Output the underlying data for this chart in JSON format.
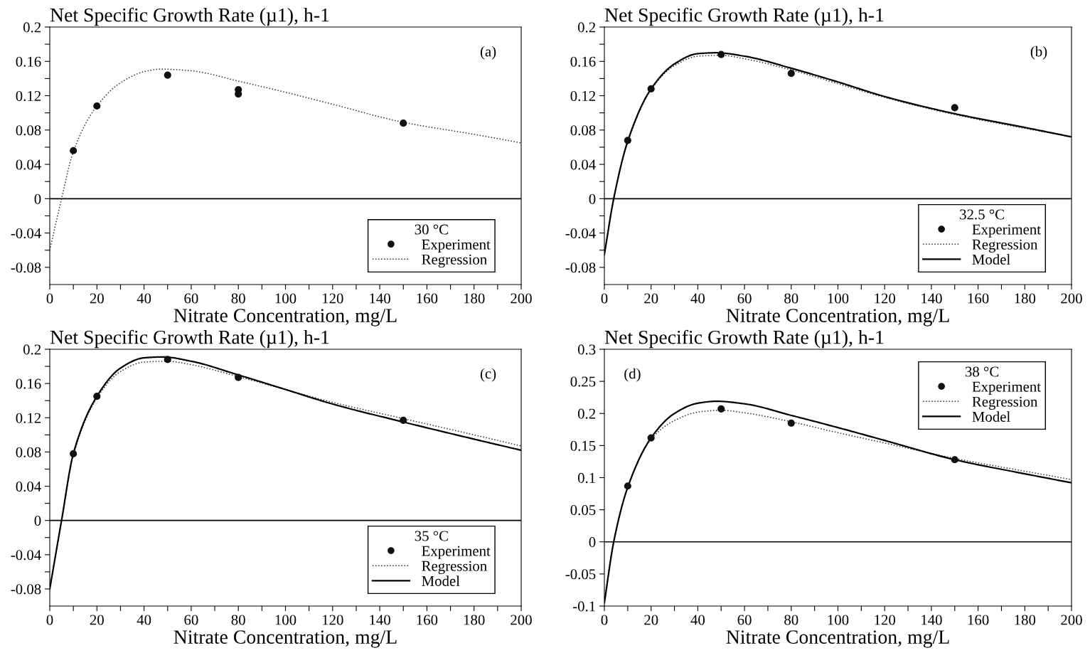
{
  "chart_data": [
    {
      "type": "line",
      "ylabel": "Net Specific Growth Rate (µ1), h-1",
      "xlabel": "Nitrate Concentration, mg/L",
      "legend_title": "30 °C",
      "legend": "bottom right",
      "annotations": [
        "(a)"
      ],
      "xlim": [
        0,
        200
      ],
      "xticks": [
        0,
        {
          "value": 10,
          "label": null
        },
        20,
        {
          "value": 30,
          "label": null
        },
        40,
        {
          "value": 50,
          "label": null
        },
        60,
        {
          "value": 70,
          "label": null
        },
        80,
        {
          "value": 90,
          "label": null
        },
        100,
        {
          "value": 110,
          "label": null
        },
        120,
        {
          "value": 130,
          "label": null
        },
        140,
        {
          "value": 150,
          "label": null
        },
        160,
        {
          "value": 170,
          "label": null
        },
        180,
        {
          "value": 190,
          "label": null
        },
        200
      ],
      "ylim": [
        -0.1,
        0.2
      ],
      "yticks": [
        -0.08,
        {
          "value": -0.06,
          "label": null
        },
        -0.04,
        {
          "value": -0.02,
          "label": null
        },
        0,
        {
          "value": 0.02,
          "label": null
        },
        0.04,
        {
          "value": 0.06,
          "label": null
        },
        0.08,
        {
          "value": 0.1,
          "label": null
        },
        0.12,
        {
          "value": 0.14,
          "label": null
        },
        0.16,
        {
          "value": 0.18,
          "label": null
        },
        0.2
      ],
      "ref_lines": [
        {
          "axis": "y",
          "value": 0,
          "color": "#000000"
        }
      ],
      "series": [
        {
          "name": "Experiment",
          "type": "scatter",
          "marker": "circle",
          "color": "#111111",
          "x": [
            10,
            20,
            50,
            80,
            80,
            150
          ],
          "values": [
            0.056,
            0.108,
            0.144,
            0.127,
            0.122,
            0.088
          ]
        },
        {
          "name": "Regression",
          "line_style": "dotted",
          "color": "#333333",
          "x": [
            0,
            5,
            10,
            20,
            30,
            40,
            47,
            60,
            80,
            100,
            120,
            150,
            180,
            200
          ],
          "values": [
            -0.06,
            0.0,
            0.055,
            0.108,
            0.135,
            0.148,
            0.151,
            0.149,
            0.137,
            0.124,
            0.11,
            0.089,
            0.075,
            0.065
          ]
        }
      ]
    },
    {
      "type": "line",
      "ylabel": "Net Specific Growth Rate (µ1), h-1",
      "xlabel": "Nitrate Concentration, mg/L",
      "legend_title": "32.5 °C",
      "legend": "bottom right",
      "annotations": [
        "(b)"
      ],
      "xlim": [
        0,
        200
      ],
      "xticks": [
        0,
        {
          "value": 10,
          "label": null
        },
        20,
        {
          "value": 30,
          "label": null
        },
        40,
        {
          "value": 50,
          "label": null
        },
        60,
        {
          "value": 70,
          "label": null
        },
        80,
        {
          "value": 90,
          "label": null
        },
        100,
        {
          "value": 110,
          "label": null
        },
        120,
        {
          "value": 130,
          "label": null
        },
        140,
        {
          "value": 150,
          "label": null
        },
        160,
        {
          "value": 170,
          "label": null
        },
        180,
        {
          "value": 190,
          "label": null
        },
        200
      ],
      "ylim": [
        -0.1,
        0.2
      ],
      "yticks": [
        -0.08,
        {
          "value": -0.06,
          "label": null
        },
        -0.04,
        {
          "value": -0.02,
          "label": null
        },
        0,
        {
          "value": 0.02,
          "label": null
        },
        0.04,
        {
          "value": 0.06,
          "label": null
        },
        0.08,
        {
          "value": 0.1,
          "label": null
        },
        0.12,
        {
          "value": 0.14,
          "label": null
        },
        0.16,
        {
          "value": 0.18,
          "label": null
        },
        0.2
      ],
      "ref_lines": [
        {
          "axis": "y",
          "value": 0,
          "color": "#000000"
        }
      ],
      "series": [
        {
          "name": "Experiment",
          "type": "scatter",
          "marker": "circle",
          "color": "#111111",
          "x": [
            10,
            20,
            50,
            80,
            150
          ],
          "values": [
            0.068,
            0.128,
            0.168,
            0.146,
            0.106
          ]
        },
        {
          "name": "Regression",
          "line_style": "dotted",
          "color": "#333333",
          "x": [
            0,
            4,
            10,
            20,
            30,
            40,
            50,
            60,
            80,
            100,
            120,
            150,
            180,
            200
          ],
          "values": [
            -0.065,
            0.0,
            0.066,
            0.127,
            0.155,
            0.166,
            0.167,
            0.163,
            0.15,
            0.134,
            0.118,
            0.098,
            0.082,
            0.072
          ]
        },
        {
          "name": "Model",
          "line_style": "solid",
          "color": "#000000",
          "x": [
            0,
            4,
            10,
            20,
            30,
            40,
            48,
            60,
            80,
            100,
            120,
            150,
            180,
            200
          ],
          "values": [
            -0.065,
            0.0,
            0.067,
            0.128,
            0.157,
            0.169,
            0.17,
            0.166,
            0.152,
            0.136,
            0.119,
            0.099,
            0.083,
            0.072
          ]
        }
      ]
    },
    {
      "type": "line",
      "ylabel": "Net Specific Growth Rate (µ1), h-1",
      "xlabel": "Nitrate Concentration, mg/L",
      "legend_title": "35 °C",
      "legend": "bottom right",
      "annotations": [
        "(c)"
      ],
      "xlim": [
        0,
        200
      ],
      "xticks": [
        0,
        {
          "value": 10,
          "label": null
        },
        20,
        {
          "value": 30,
          "label": null
        },
        40,
        {
          "value": 50,
          "label": null
        },
        60,
        {
          "value": 70,
          "label": null
        },
        80,
        {
          "value": 90,
          "label": null
        },
        100,
        {
          "value": 110,
          "label": null
        },
        120,
        {
          "value": 130,
          "label": null
        },
        140,
        {
          "value": 150,
          "label": null
        },
        160,
        {
          "value": 170,
          "label": null
        },
        180,
        {
          "value": 190,
          "label": null
        },
        200
      ],
      "ylim": [
        -0.1,
        0.2
      ],
      "yticks": [
        -0.08,
        {
          "value": -0.06,
          "label": null
        },
        -0.04,
        {
          "value": -0.02,
          "label": null
        },
        0,
        {
          "value": 0.02,
          "label": null
        },
        0.04,
        {
          "value": 0.06,
          "label": null
        },
        0.08,
        {
          "value": 0.1,
          "label": null
        },
        0.12,
        {
          "value": 0.14,
          "label": null
        },
        0.16,
        {
          "value": 0.18,
          "label": null
        },
        0.2
      ],
      "ref_lines": [
        {
          "axis": "y",
          "value": 0,
          "color": "#000000"
        }
      ],
      "series": [
        {
          "name": "Experiment",
          "type": "scatter",
          "marker": "circle",
          "color": "#111111",
          "x": [
            10,
            20,
            50,
            80,
            150
          ],
          "values": [
            0.078,
            0.145,
            0.188,
            0.167,
            0.117
          ]
        },
        {
          "name": "Regression",
          "line_style": "dotted",
          "color": "#333333",
          "x": [
            0,
            5,
            10,
            20,
            30,
            40,
            50,
            60,
            80,
            100,
            120,
            150,
            180,
            200
          ],
          "values": [
            -0.08,
            0.0,
            0.076,
            0.143,
            0.174,
            0.185,
            0.186,
            0.182,
            0.168,
            0.153,
            0.138,
            0.119,
            0.1,
            0.087
          ]
        },
        {
          "name": "Model",
          "line_style": "solid",
          "color": "#000000",
          "x": [
            0,
            5,
            10,
            20,
            30,
            40,
            48,
            60,
            80,
            100,
            120,
            150,
            180,
            200
          ],
          "values": [
            -0.08,
            0.0,
            0.078,
            0.145,
            0.178,
            0.19,
            0.191,
            0.186,
            0.17,
            0.153,
            0.136,
            0.115,
            0.095,
            0.082
          ]
        }
      ]
    },
    {
      "type": "line",
      "ylabel": "Net Specific Growth Rate (µ1), h-1",
      "xlabel": "Nitrate Concentration, mg/L",
      "legend_title": "38 °C",
      "legend": "top right",
      "annotations": [
        "(d)"
      ],
      "xlim": [
        0,
        200
      ],
      "xticks": [
        0,
        {
          "value": 10,
          "label": null
        },
        20,
        {
          "value": 30,
          "label": null
        },
        40,
        {
          "value": 50,
          "label": null
        },
        60,
        {
          "value": 70,
          "label": null
        },
        80,
        {
          "value": 90,
          "label": null
        },
        100,
        {
          "value": 110,
          "label": null
        },
        120,
        {
          "value": 130,
          "label": null
        },
        140,
        {
          "value": 150,
          "label": null
        },
        160,
        {
          "value": 170,
          "label": null
        },
        180,
        {
          "value": 190,
          "label": null
        },
        200
      ],
      "ylim": [
        -0.1,
        0.3
      ],
      "yticks": [
        -0.1,
        -0.05,
        0,
        0.05,
        0.1,
        0.15,
        0.2,
        0.25,
        0.3
      ],
      "ref_lines": [
        {
          "axis": "y",
          "value": 0,
          "color": "#000000"
        }
      ],
      "series": [
        {
          "name": "Experiment",
          "type": "scatter",
          "marker": "circle",
          "color": "#111111",
          "x": [
            10,
            20,
            50,
            80,
            150
          ],
          "values": [
            0.087,
            0.162,
            0.207,
            0.185,
            0.128
          ]
        },
        {
          "name": "Regression",
          "line_style": "dotted",
          "color": "#333333",
          "x": [
            0,
            4,
            10,
            20,
            30,
            40,
            50,
            60,
            80,
            100,
            120,
            150,
            180,
            200
          ],
          "values": [
            -0.09,
            0.0,
            0.085,
            0.16,
            0.189,
            0.202,
            0.205,
            0.201,
            0.187,
            0.17,
            0.154,
            0.13,
            0.11,
            0.097
          ]
        },
        {
          "name": "Model",
          "line_style": "solid",
          "color": "#000000",
          "x": [
            0,
            4,
            10,
            20,
            30,
            40,
            48,
            60,
            80,
            100,
            120,
            150,
            180,
            200
          ],
          "values": [
            -0.095,
            0.0,
            0.085,
            0.162,
            0.2,
            0.216,
            0.219,
            0.215,
            0.197,
            0.178,
            0.158,
            0.128,
            0.106,
            0.092
          ]
        }
      ]
    }
  ]
}
